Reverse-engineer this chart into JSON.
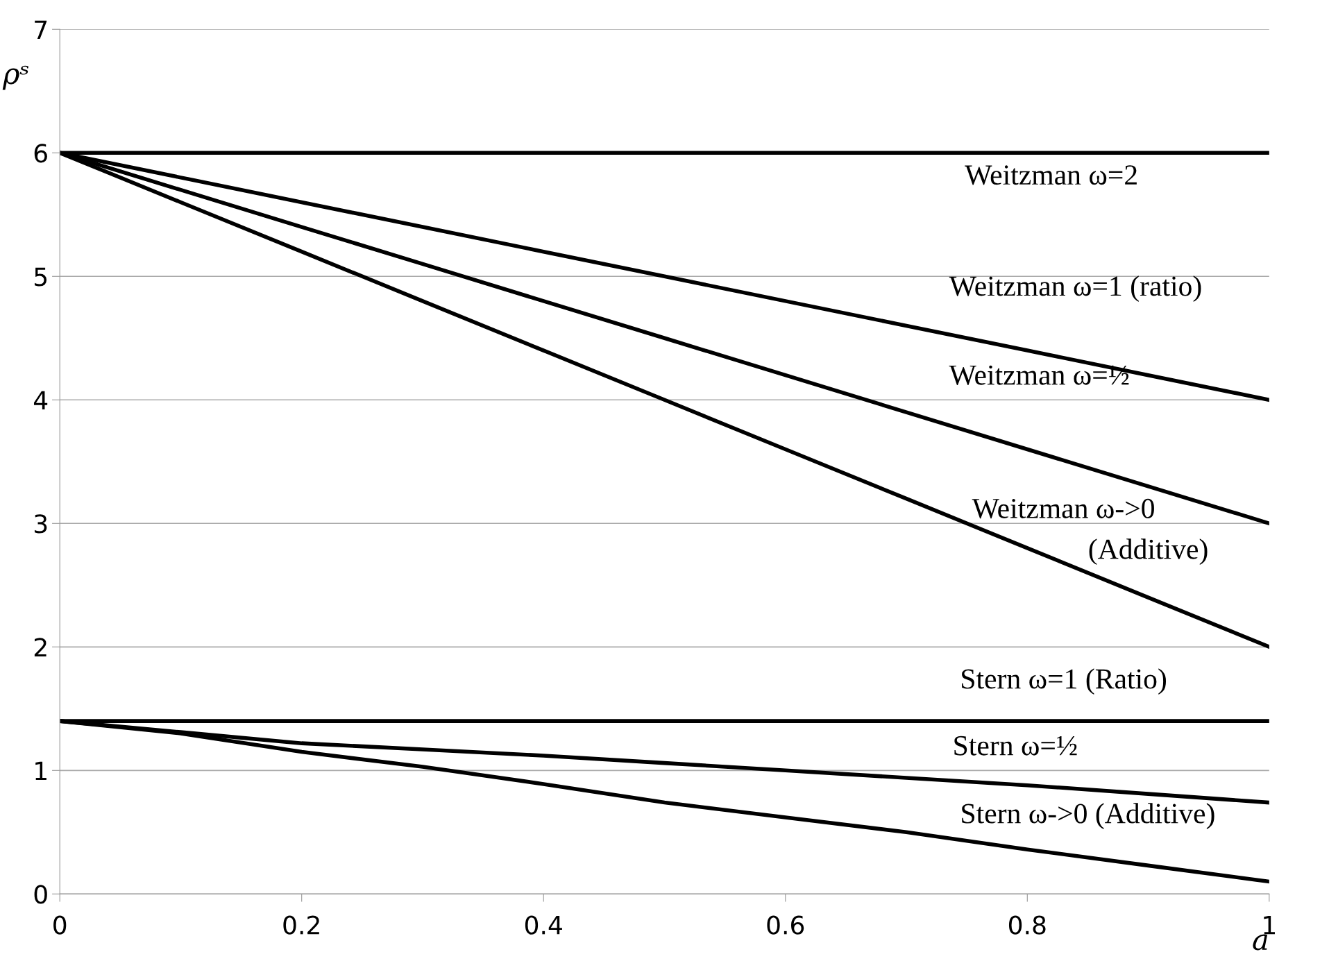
{
  "chart_data": {
    "type": "line",
    "xlabel": "a",
    "ylabel": "ρˢ",
    "x": [
      0,
      0.1,
      0.2,
      0.3,
      0.4,
      0.5,
      0.6,
      0.7,
      0.8,
      0.9,
      1
    ],
    "series": [
      {
        "color": "#000000",
        "values": [
          6,
          6,
          6,
          6,
          6,
          6,
          6,
          6,
          6,
          6,
          6
        ]
      },
      {
        "color": "#000000",
        "values": [
          6,
          5.8,
          5.6,
          5.4,
          5.2,
          5.0,
          4.8,
          4.6,
          4.4,
          4.2,
          4.0
        ]
      },
      {
        "color": "#000000",
        "values": [
          6,
          5.7,
          5.4,
          5.1,
          4.8,
          4.5,
          4.2,
          3.9,
          3.6,
          3.3,
          3.0
        ]
      },
      {
        "color": "#000000",
        "values": [
          6,
          5.6,
          5.2,
          4.8,
          4.4,
          4.0,
          3.6,
          3.2,
          2.8,
          2.4,
          2.0
        ]
      },
      {
        "color": "#000000",
        "values": [
          1.4,
          1.4,
          1.4,
          1.4,
          1.4,
          1.4,
          1.4,
          1.4,
          1.4,
          1.4,
          1.4
        ]
      },
      {
        "color": "#000000",
        "values": [
          1.4,
          1.31,
          1.22,
          1.17,
          1.12,
          1.06,
          1.0,
          0.94,
          0.88,
          0.81,
          0.74
        ]
      },
      {
        "color": "#000000",
        "values": [
          1.4,
          1.3,
          1.15,
          1.03,
          0.89,
          0.74,
          0.62,
          0.5,
          0.36,
          0.23,
          0.1
        ]
      }
    ],
    "annotations": [
      "Weitzman ω=2",
      "Weitzman ω=1 (ratio)",
      "Weitzman ω=½",
      "Weitzman ω->0",
      "(Additive)",
      "Stern ω=1 (Ratio)",
      "Stern ω=½",
      "Stern ω->0 (Additive)"
    ],
    "xlim": [
      0,
      1
    ],
    "xticks": [
      0,
      0.2,
      0.4,
      0.6,
      0.8,
      1
    ],
    "ylim": [
      0,
      7
    ],
    "yticks": [
      0,
      1,
      2,
      3,
      4,
      5,
      6,
      7
    ],
    "grid": "y",
    "legend": false,
    "marker": "none",
    "line_style": "solid"
  }
}
